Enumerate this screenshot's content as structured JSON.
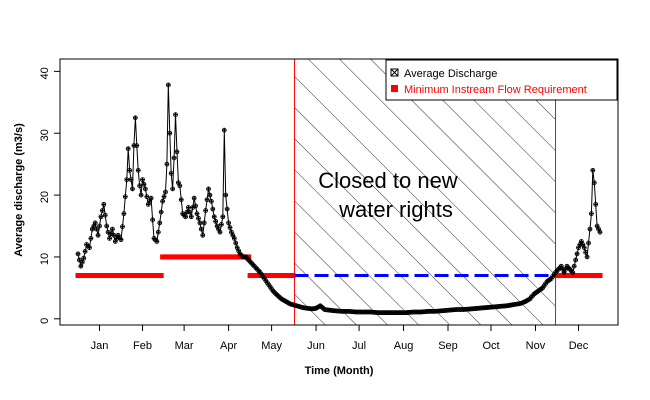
{
  "chart_data": {
    "type": "scatter",
    "title": "",
    "xlabel": "Time (Month)",
    "ylabel": "Average discharge (m3/s)",
    "xlim": [
      1,
      365
    ],
    "ylim": [
      -1,
      42
    ],
    "month_ticks": [
      {
        "label": "Jan",
        "day": 16
      },
      {
        "label": "Feb",
        "day": 46
      },
      {
        "label": "Mar",
        "day": 75
      },
      {
        "label": "Apr",
        "day": 106
      },
      {
        "label": "May",
        "day": 136
      },
      {
        "label": "Jun",
        "day": 167
      },
      {
        "label": "Jul",
        "day": 197
      },
      {
        "label": "Aug",
        "day": 228
      },
      {
        "label": "Sep",
        "day": 259
      },
      {
        "label": "Oct",
        "day": 289
      },
      {
        "label": "Nov",
        "day": 320
      },
      {
        "label": "Dec",
        "day": 350
      }
    ],
    "y_ticks": [
      0,
      10,
      20,
      30,
      40
    ],
    "legend": {
      "placement": "top-right",
      "items": [
        {
          "label": "Average Discharge",
          "color": "#000000"
        },
        {
          "label": "Minimum Instream Flow Requirement",
          "color": "#ff0000"
        }
      ]
    },
    "closed_period": {
      "start_day": 152,
      "end_day": 334,
      "label_line1": "Closed to new",
      "label_line2": "water rights",
      "border_color": "#ff0000"
    },
    "series": [
      {
        "name": "Average Discharge",
        "color": "#000000",
        "keypoints": [
          [
            1,
            10.5
          ],
          [
            3,
            8.5
          ],
          [
            5,
            9.8
          ],
          [
            7,
            12
          ],
          [
            9,
            11.5
          ],
          [
            11,
            14.5
          ],
          [
            13,
            15.5
          ],
          [
            15,
            13.5
          ],
          [
            17,
            16.5
          ],
          [
            19,
            18.5
          ],
          [
            21,
            15
          ],
          [
            23,
            13
          ],
          [
            25,
            14.5
          ],
          [
            27,
            12.5
          ],
          [
            29,
            13.5
          ],
          [
            31,
            12.8
          ],
          [
            33,
            17
          ],
          [
            35,
            22.5
          ],
          [
            36,
            27.5
          ],
          [
            37,
            24
          ],
          [
            39,
            21
          ],
          [
            40,
            28
          ],
          [
            41,
            32.5
          ],
          [
            42,
            28
          ],
          [
            43,
            24
          ],
          [
            44,
            21.5
          ],
          [
            45,
            20
          ],
          [
            46,
            22.5
          ],
          [
            48,
            21
          ],
          [
            50,
            18.5
          ],
          [
            52,
            19.5
          ],
          [
            53,
            16
          ],
          [
            54,
            13
          ],
          [
            56,
            12.5
          ],
          [
            58,
            15.5
          ],
          [
            60,
            19
          ],
          [
            62,
            20.5
          ],
          [
            63,
            25
          ],
          [
            64,
            37.8
          ],
          [
            65,
            30
          ],
          [
            66,
            23.5
          ],
          [
            67,
            21
          ],
          [
            68,
            26
          ],
          [
            69,
            33
          ],
          [
            70,
            27
          ],
          [
            71,
            22
          ],
          [
            72,
            21.5
          ],
          [
            74,
            17
          ],
          [
            76,
            16.5
          ],
          [
            78,
            18
          ],
          [
            80,
            16.5
          ],
          [
            82,
            19.5
          ],
          [
            84,
            17
          ],
          [
            86,
            15.5
          ],
          [
            88,
            13.5
          ],
          [
            90,
            17.5
          ],
          [
            92,
            21
          ],
          [
            94,
            19
          ],
          [
            96,
            16.5
          ],
          [
            98,
            15
          ],
          [
            100,
            14
          ],
          [
            102,
            16.5
          ],
          [
            103,
            30.5
          ],
          [
            104,
            20
          ],
          [
            106,
            15.5
          ],
          [
            108,
            14
          ],
          [
            110,
            13
          ],
          [
            112,
            11.5
          ],
          [
            114,
            10.5
          ],
          [
            116,
            10
          ],
          [
            118,
            10
          ],
          [
            120,
            9.5
          ],
          [
            122,
            9
          ],
          [
            124,
            8.5
          ],
          [
            126,
            8
          ],
          [
            128,
            7.5
          ],
          [
            131,
            6.5
          ],
          [
            134,
            5.5
          ],
          [
            137,
            4.5
          ],
          [
            140,
            3.8
          ],
          [
            143,
            3.2
          ],
          [
            146,
            2.8
          ],
          [
            149,
            2.4
          ],
          [
            152,
            2.2
          ],
          [
            155,
            2
          ],
          [
            158,
            1.8
          ],
          [
            161,
            1.7
          ],
          [
            164,
            1.6
          ],
          [
            167,
            1.7
          ],
          [
            170,
            2.1
          ],
          [
            173,
            1.5
          ],
          [
            176,
            1.4
          ],
          [
            180,
            1.3
          ],
          [
            185,
            1.2
          ],
          [
            190,
            1.2
          ],
          [
            195,
            1.1
          ],
          [
            200,
            1.1
          ],
          [
            205,
            1.1
          ],
          [
            210,
            1
          ],
          [
            215,
            1
          ],
          [
            220,
            1
          ],
          [
            225,
            1
          ],
          [
            230,
            1
          ],
          [
            235,
            1.1
          ],
          [
            240,
            1.1
          ],
          [
            245,
            1.2
          ],
          [
            250,
            1.2
          ],
          [
            255,
            1.3
          ],
          [
            260,
            1.4
          ],
          [
            265,
            1.5
          ],
          [
            270,
            1.5
          ],
          [
            275,
            1.6
          ],
          [
            280,
            1.7
          ],
          [
            285,
            1.8
          ],
          [
            290,
            1.9
          ],
          [
            295,
            2
          ],
          [
            300,
            2.1
          ],
          [
            305,
            2.3
          ],
          [
            310,
            2.5
          ],
          [
            313,
            2.8
          ],
          [
            316,
            3.2
          ],
          [
            319,
            4
          ],
          [
            322,
            4.5
          ],
          [
            325,
            5
          ],
          [
            328,
            6
          ],
          [
            331,
            6.5
          ],
          [
            334,
            7.5
          ],
          [
            336,
            8
          ],
          [
            338,
            8.5
          ],
          [
            340,
            7.5
          ],
          [
            342,
            8.5
          ],
          [
            344,
            8
          ],
          [
            346,
            7.5
          ],
          [
            348,
            9.5
          ],
          [
            350,
            11.5
          ],
          [
            352,
            12.5
          ],
          [
            354,
            11.5
          ],
          [
            356,
            10
          ],
          [
            358,
            14.5
          ],
          [
            359,
            17
          ],
          [
            360,
            24
          ],
          [
            361,
            22
          ],
          [
            363,
            15
          ],
          [
            365,
            14
          ]
        ]
      },
      {
        "name": "Minimum Instream Flow Requirement",
        "color": "#ff0000",
        "segments": [
          {
            "start_day": 1,
            "end_day": 59,
            "value": 7
          },
          {
            "start_day": 60,
            "end_day": 120,
            "value": 10
          },
          {
            "start_day": 121,
            "end_day": 151,
            "value": 7
          },
          {
            "start_day": 335,
            "end_day": 365,
            "value": 7
          }
        ]
      },
      {
        "name": "",
        "color": "#0000ff",
        "style": "dashed",
        "segments": [
          {
            "start_day": 152,
            "end_day": 334,
            "value": 7
          }
        ]
      }
    ]
  }
}
